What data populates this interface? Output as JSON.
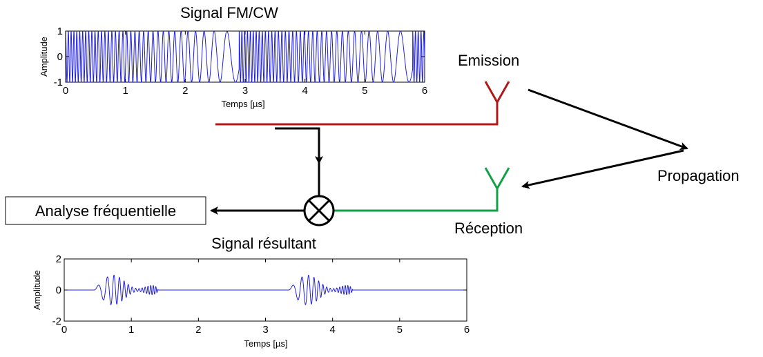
{
  "labels": {
    "emission": "Emission",
    "propagation": "Propagation",
    "reception": "Réception",
    "analysis": "Analyse fréquentielle"
  },
  "colors": {
    "tx_line": "#b01818",
    "rx_line": "#11a046",
    "signal": "#1f1fe0",
    "arrow": "#000000"
  },
  "chart_data": [
    {
      "type": "line",
      "title": "Signal FM/CW",
      "xlabel": "Temps [µs]",
      "ylabel": "Amplitude",
      "xlim": [
        0,
        6
      ],
      "ylim": [
        -1,
        1
      ],
      "xticks": [
        "0",
        "1",
        "2",
        "3",
        "4",
        "5",
        "6"
      ],
      "yticks": [
        "-1",
        "0",
        "1"
      ],
      "description_signal": "linear chirp, sweep period 2.9 µs",
      "sweep_period_us": 2.9
    },
    {
      "type": "line",
      "title": "Signal résultant",
      "xlabel": "Temps [µs]",
      "ylabel": "Amplitude",
      "xlim": [
        0,
        6
      ],
      "ylim": [
        -2,
        2
      ],
      "xticks": [
        "0",
        "1",
        "2",
        "3",
        "4",
        "5",
        "6"
      ],
      "yticks": [
        "-2",
        "0",
        "2"
      ],
      "bursts_start_us": [
        0.45,
        3.35
      ],
      "burst_duration_us": 0.95
    }
  ]
}
